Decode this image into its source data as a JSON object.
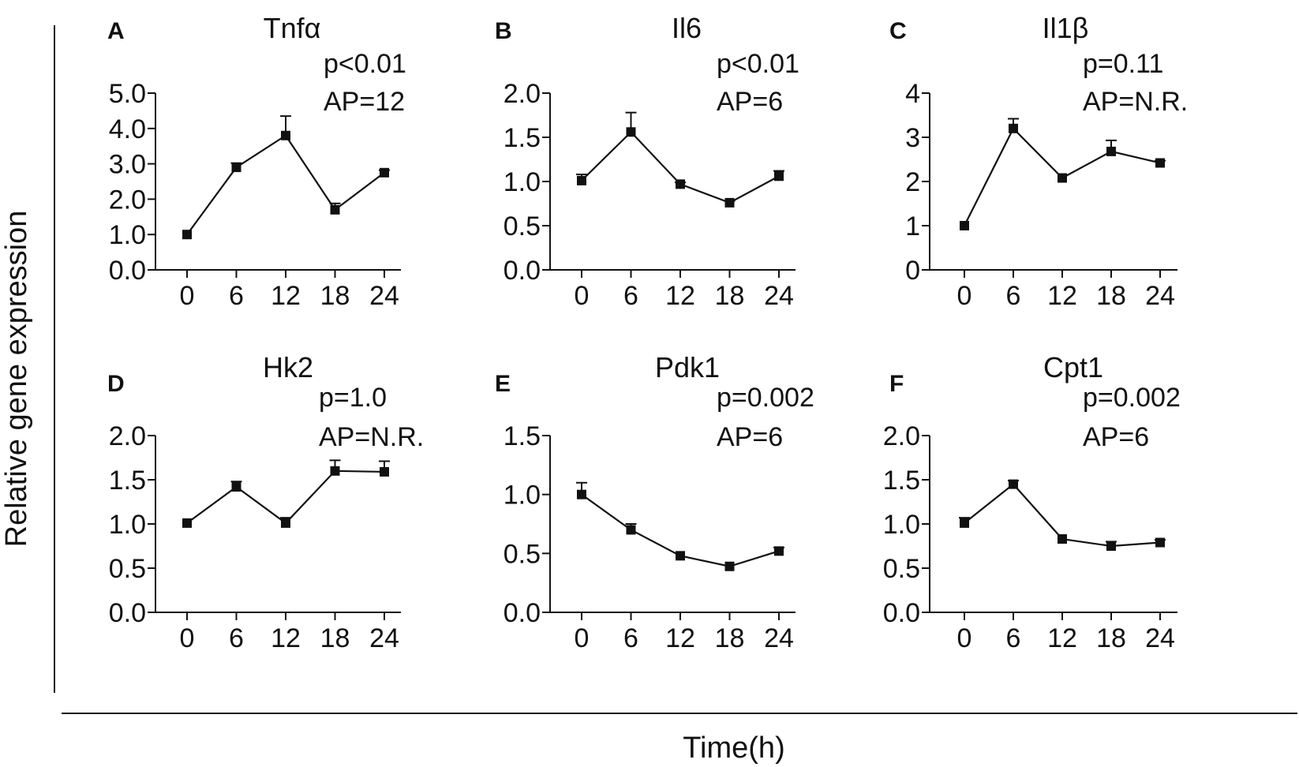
{
  "shared": {
    "ylabel": "Relative gene expression",
    "xlabel": "Time(h)"
  },
  "chart_data": [
    {
      "type": "line",
      "letter": "A",
      "title": "Tnfα",
      "stats": [
        "p<0.01",
        "AP=12"
      ],
      "x": [
        0,
        6,
        12,
        18,
        24
      ],
      "x_ticks": [
        "0",
        "6",
        "12",
        "18",
        "24"
      ],
      "values": [
        1.0,
        2.9,
        3.8,
        1.7,
        2.75
      ],
      "errors": [
        0.0,
        0.12,
        0.55,
        0.18,
        0.07
      ],
      "ylim": [
        0,
        5
      ],
      "y_ticks": [
        0,
        1,
        2,
        3,
        4,
        5
      ],
      "y_tick_labels": [
        "0.0",
        "1.0",
        "2.0",
        "3.0",
        "4.0",
        "5.0"
      ]
    },
    {
      "type": "line",
      "letter": "B",
      "title": "Il6",
      "stats": [
        "p<0.01",
        "AP=6"
      ],
      "x": [
        0,
        6,
        12,
        18,
        24
      ],
      "x_ticks": [
        "0",
        "6",
        "12",
        "18",
        "24"
      ],
      "values": [
        1.01,
        1.56,
        0.97,
        0.76,
        1.06
      ],
      "errors": [
        0.07,
        0.22,
        0.02,
        0.02,
        0.06
      ],
      "ylim": [
        0,
        2
      ],
      "y_ticks": [
        0,
        0.5,
        1,
        1.5,
        2
      ],
      "y_tick_labels": [
        "0.0",
        "0.5",
        "1.0",
        "1.5",
        "2.0"
      ]
    },
    {
      "type": "line",
      "letter": "C",
      "title": "Il1β",
      "stats": [
        "p=0.11",
        "AP=N.R."
      ],
      "x": [
        0,
        6,
        12,
        18,
        24
      ],
      "x_ticks": [
        "0",
        "6",
        "12",
        "18",
        "24"
      ],
      "values": [
        1.0,
        3.2,
        2.08,
        2.68,
        2.42
      ],
      "errors": [
        0.0,
        0.22,
        0.0,
        0.25,
        0.05
      ],
      "ylim": [
        0,
        4
      ],
      "y_ticks": [
        0,
        1,
        2,
        3,
        4
      ],
      "y_tick_labels": [
        "0",
        "1",
        "2",
        "3",
        "4"
      ]
    },
    {
      "type": "line",
      "letter": "D",
      "title": "Hk2",
      "stats": [
        "p=1.0",
        "AP=N.R."
      ],
      "x": [
        0,
        6,
        12,
        18,
        24
      ],
      "x_ticks": [
        "0",
        "6",
        "12",
        "18",
        "24"
      ],
      "values": [
        1.01,
        1.42,
        1.01,
        1.6,
        1.59
      ],
      "errors": [
        0.0,
        0.06,
        0.06,
        0.12,
        0.12
      ],
      "ylim": [
        0,
        2
      ],
      "y_ticks": [
        0,
        0.5,
        1,
        1.5,
        2
      ],
      "y_tick_labels": [
        "0.0",
        "0.5",
        "1.0",
        "1.5",
        "2.0"
      ]
    },
    {
      "type": "line",
      "letter": "E",
      "title": "Pdk1",
      "stats": [
        "p=0.002",
        "AP=6"
      ],
      "x": [
        0,
        6,
        12,
        18,
        24
      ],
      "x_ticks": [
        "0",
        "6",
        "12",
        "18",
        "24"
      ],
      "values": [
        1.0,
        0.7,
        0.48,
        0.39,
        0.52
      ],
      "errors": [
        0.1,
        0.05,
        0.0,
        0.0,
        0.03
      ],
      "ylim": [
        0,
        1.5
      ],
      "y_ticks": [
        0,
        0.5,
        1,
        1.5
      ],
      "y_tick_labels": [
        "0.0",
        "0.5",
        "1.0",
        "1.5"
      ]
    },
    {
      "type": "line",
      "letter": "F",
      "title": "Cpt1",
      "stats": [
        "p=0.002",
        "AP=6"
      ],
      "x": [
        0,
        6,
        12,
        18,
        24
      ],
      "x_ticks": [
        "0",
        "6",
        "12",
        "18",
        "24"
      ],
      "values": [
        1.01,
        1.45,
        0.83,
        0.75,
        0.79
      ],
      "errors": [
        0.06,
        0.04,
        0.0,
        0.05,
        0.03
      ],
      "ylim": [
        0,
        2
      ],
      "y_ticks": [
        0,
        0.5,
        1,
        1.5,
        2
      ],
      "y_tick_labels": [
        "0.0",
        "0.5",
        "1.0",
        "1.5",
        "2.0"
      ]
    }
  ]
}
